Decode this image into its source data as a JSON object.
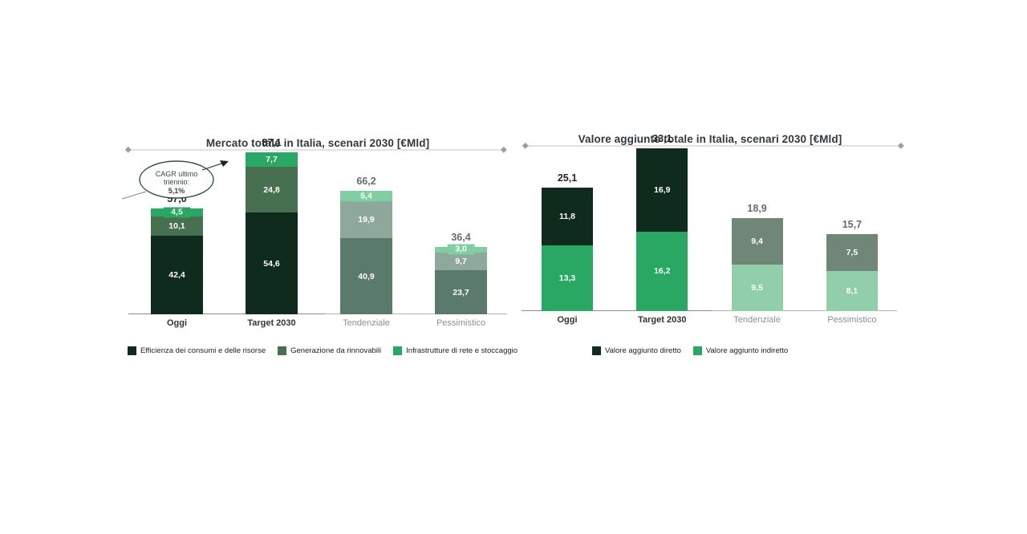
{
  "colors": {
    "dark_green": "#0f2b1e",
    "forest_green": "#46704f",
    "emerald": "#28a862",
    "muted_dark": "#5a7a6b",
    "muted_mid": "#8ea99c",
    "muted_mint": "#7fcfa2",
    "muted_dark_right": "#6f8679",
    "muted_mint_right": "#91cfaa",
    "axis_light": "#b3b3b3",
    "axis_dark": "#8c8c8c",
    "title_rule": "#c4c4c4",
    "annotation_green": "#2e5243"
  },
  "chart_data": [
    {
      "type": "bar",
      "stacked": true,
      "title": "Mercato totale in Italia, scenari 2030 [€Mld]",
      "unit": "€Mld",
      "categories": [
        "Oggi",
        "Target 2030",
        "Tendenziale",
        "Pessimistico"
      ],
      "categories_emphasis": [
        true,
        true,
        false,
        false
      ],
      "series": [
        {
          "name": "Efficienza dei consumi e delle risorse",
          "legend_color": "#0f2b1e",
          "values": [
            42.4,
            54.6,
            40.9,
            23.7
          ],
          "labels": [
            "42,4",
            "54,6",
            "40,9",
            "23,7"
          ],
          "colors": [
            "#0f2b1e",
            "#0f2b1e",
            "#5a7a6b",
            "#5a7a6b"
          ]
        },
        {
          "name": "Generazione da rinnovabili",
          "legend_color": "#46704f",
          "values": [
            10.1,
            24.8,
            19.9,
            9.7
          ],
          "labels": [
            "10,1",
            "24,8",
            "19,9",
            "9,7"
          ],
          "colors": [
            "#46704f",
            "#46704f",
            "#8ea99c",
            "#8ea99c"
          ]
        },
        {
          "name": "Infrastrutture di rete e stoccaggio",
          "legend_color": "#28a862",
          "values": [
            4.5,
            7.7,
            5.4,
            3.0
          ],
          "labels": [
            "4,5",
            "7,7",
            "5,4",
            "3,0"
          ],
          "colors": [
            "#28a862",
            "#28a862",
            "#7fcfa2",
            "#7fcfa2"
          ]
        }
      ],
      "totals": [
        57.0,
        87.1,
        66.2,
        36.4
      ],
      "total_labels": [
        "57,0",
        "87,1",
        "66,2",
        "36,4"
      ],
      "ylim": [
        0,
        87.1
      ],
      "grid": false,
      "legend_position": "bottom",
      "annotation": {
        "line1": "CAGR ultimo",
        "line2": "triennio:",
        "line3": "5,1%"
      }
    },
    {
      "type": "bar",
      "stacked": true,
      "title": "Valore aggiunto totale in Italia, scenari 2030 [€Mld]",
      "unit": "€Mld",
      "categories": [
        "Oggi",
        "Target 2030",
        "Tendenziale",
        "Pessimistico"
      ],
      "categories_emphasis": [
        true,
        true,
        false,
        false
      ],
      "series": [
        {
          "name": "Valore aggiunto indiretto",
          "legend_color": "#28a862",
          "values": [
            13.3,
            16.2,
            9.5,
            8.1
          ],
          "labels": [
            "13,3",
            "16,2",
            "9,5",
            "8,1"
          ],
          "colors": [
            "#28a862",
            "#28a862",
            "#91cfaa",
            "#91cfaa"
          ],
          "legend_order": 2
        },
        {
          "name": "Valore aggiunto diretto",
          "legend_color": "#0f2b1e",
          "values": [
            11.8,
            16.9,
            9.4,
            7.5
          ],
          "labels": [
            "11,8",
            "16,9",
            "9,4",
            "7,5"
          ],
          "colors": [
            "#0f2b1e",
            "#0f2b1e",
            "#6f8679",
            "#6f8679"
          ],
          "legend_order": 1
        }
      ],
      "totals": [
        25.1,
        33.1,
        18.9,
        15.7
      ],
      "total_labels": [
        "25,1",
        "33,1",
        "18,9",
        "15,7"
      ],
      "ylim": [
        0,
        33.1
      ],
      "grid": false,
      "legend_position": "bottom"
    }
  ]
}
